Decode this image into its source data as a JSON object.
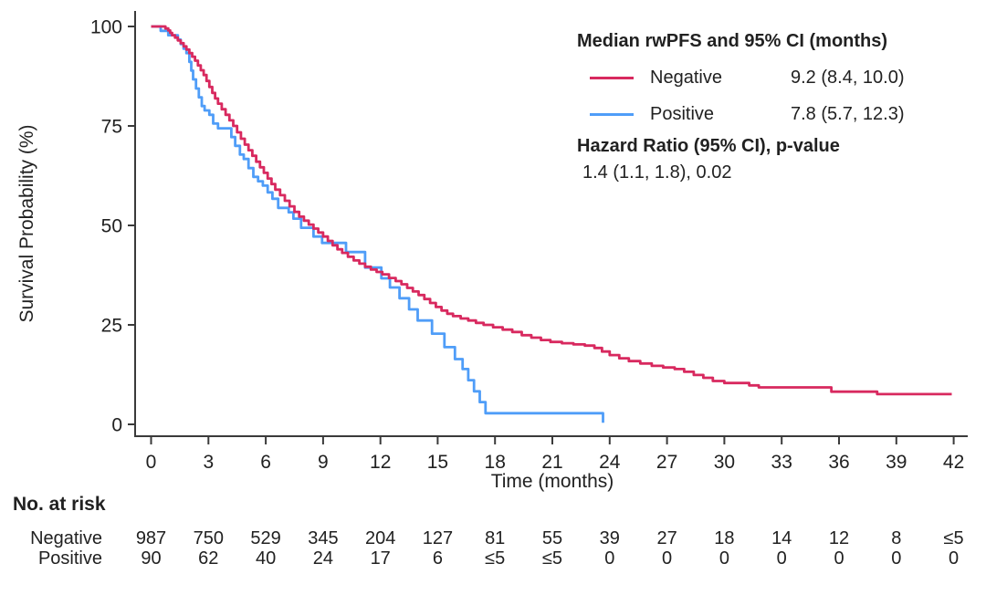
{
  "accent_colors": {
    "negative": "#d8295f",
    "positive": "#4f9df8",
    "axis": "#3a3a3a",
    "text": "#212121"
  },
  "legend": {
    "title": "Median rwPFS and 95% CI (months)",
    "rows": [
      {
        "label": "Negative",
        "value": "9.2 (8.4, 10.0)"
      },
      {
        "label": "Positive",
        "value": "7.8 (5.7, 12.3)"
      }
    ],
    "hazard_title": "Hazard Ratio (95% CI), p-value",
    "hazard_value": "1.4 (1.1, 1.8), 0.02"
  },
  "risk_table": {
    "header": "No. at risk",
    "time_points": [
      0,
      3,
      6,
      9,
      12,
      15,
      18,
      21,
      24,
      27,
      30,
      33,
      36,
      39,
      42
    ],
    "rows": [
      {
        "label": "Negative",
        "counts": [
          "987",
          "750",
          "529",
          "345",
          "204",
          "127",
          "81",
          "55",
          "39",
          "27",
          "18",
          "14",
          "12",
          "8",
          "≤5"
        ]
      },
      {
        "label": "Positive",
        "counts": [
          "90",
          "62",
          "40",
          "24",
          "17",
          "6",
          "≤5",
          "≤5",
          "0",
          "0",
          "0",
          "0",
          "0",
          "0",
          "0"
        ]
      }
    ]
  },
  "chart_data": {
    "type": "line",
    "subtype": "kaplan-meier-step",
    "title": "",
    "xlabel": "Time (months)",
    "ylabel": "Survival Probability (%)",
    "xlim": [
      0,
      42
    ],
    "ylim": [
      0,
      100
    ],
    "x_ticks": [
      0,
      3,
      6,
      9,
      12,
      15,
      18,
      21,
      24,
      27,
      30,
      33,
      36,
      39,
      42
    ],
    "y_ticks": [
      0,
      25,
      50,
      75,
      100
    ],
    "grid": false,
    "legend_position": "top-right",
    "series": [
      {
        "name": "Negative",
        "color": "#d8295f",
        "median_ci": "9.2 (8.4, 10.0)",
        "end_time": 41.9,
        "points": [
          [
            0,
            100
          ],
          [
            0.75,
            99.5
          ],
          [
            0.9,
            99
          ],
          [
            1.0,
            98.4
          ],
          [
            1.1,
            97.8
          ],
          [
            1.25,
            97.2
          ],
          [
            1.4,
            96.5
          ],
          [
            1.55,
            95.8
          ],
          [
            1.7,
            95.0
          ],
          [
            1.85,
            94.2
          ],
          [
            2.0,
            93.3
          ],
          [
            2.15,
            92.4
          ],
          [
            2.3,
            91.4
          ],
          [
            2.45,
            90.2
          ],
          [
            2.6,
            89.0
          ],
          [
            2.75,
            87.8
          ],
          [
            2.9,
            86.3
          ],
          [
            3.05,
            84.8
          ],
          [
            3.2,
            83.3
          ],
          [
            3.35,
            81.9
          ],
          [
            3.5,
            80.6
          ],
          [
            3.7,
            79.2
          ],
          [
            3.9,
            77.8
          ],
          [
            4.1,
            76.4
          ],
          [
            4.3,
            75.0
          ],
          [
            4.5,
            73.4
          ],
          [
            4.7,
            71.8
          ],
          [
            4.9,
            70.3
          ],
          [
            5.1,
            68.9
          ],
          [
            5.3,
            67.5
          ],
          [
            5.5,
            66.0
          ],
          [
            5.7,
            64.6
          ],
          [
            5.9,
            63.2
          ],
          [
            6.1,
            61.8
          ],
          [
            6.3,
            60.4
          ],
          [
            6.5,
            59.0
          ],
          [
            6.75,
            57.6
          ],
          [
            7.0,
            56.2
          ],
          [
            7.25,
            54.8
          ],
          [
            7.5,
            53.4
          ],
          [
            7.75,
            52.2
          ],
          [
            8.0,
            51.2
          ],
          [
            8.25,
            50.2
          ],
          [
            8.5,
            49.2
          ],
          [
            8.75,
            48.2
          ],
          [
            9.0,
            47.2
          ],
          [
            9.25,
            46.1
          ],
          [
            9.5,
            45.0
          ],
          [
            9.75,
            44.0
          ],
          [
            10.0,
            43.1
          ],
          [
            10.3,
            42.1
          ],
          [
            10.6,
            41.2
          ],
          [
            10.9,
            40.4
          ],
          [
            11.2,
            39.6
          ],
          [
            11.5,
            38.9
          ],
          [
            11.8,
            38.3
          ],
          [
            12.1,
            37.7
          ],
          [
            12.45,
            36.8
          ],
          [
            12.8,
            36.0
          ],
          [
            13.1,
            35.2
          ],
          [
            13.4,
            34.3
          ],
          [
            13.7,
            33.4
          ],
          [
            14.0,
            32.5
          ],
          [
            14.3,
            31.5
          ],
          [
            14.6,
            30.5
          ],
          [
            14.9,
            29.5
          ],
          [
            15.2,
            28.6
          ],
          [
            15.5,
            27.8
          ],
          [
            15.8,
            27.2
          ],
          [
            16.2,
            26.6
          ],
          [
            16.6,
            26.1
          ],
          [
            17.0,
            25.5
          ],
          [
            17.4,
            25.0
          ],
          [
            17.9,
            24.4
          ],
          [
            18.4,
            23.8
          ],
          [
            18.9,
            23.2
          ],
          [
            19.4,
            22.4
          ],
          [
            19.9,
            21.8
          ],
          [
            20.4,
            21.2
          ],
          [
            20.9,
            20.7
          ],
          [
            21.5,
            20.4
          ],
          [
            22.1,
            20.1
          ],
          [
            22.7,
            19.8
          ],
          [
            23.2,
            19.2
          ],
          [
            23.6,
            18.3
          ],
          [
            24.0,
            17.4
          ],
          [
            24.5,
            16.6
          ],
          [
            25.0,
            15.9
          ],
          [
            25.6,
            15.3
          ],
          [
            26.2,
            14.7
          ],
          [
            26.8,
            14.3
          ],
          [
            27.4,
            13.9
          ],
          [
            27.9,
            13.2
          ],
          [
            28.4,
            12.4
          ],
          [
            28.9,
            11.7
          ],
          [
            29.4,
            10.9
          ],
          [
            30.0,
            10.4
          ],
          [
            31.3,
            9.8
          ],
          [
            31.8,
            9.3
          ],
          [
            35.6,
            8.2
          ],
          [
            38.0,
            7.6
          ]
        ]
      },
      {
        "name": "Positive",
        "color": "#4f9df8",
        "median_ci": "7.8 (5.7, 12.3)",
        "end_time": null,
        "points": [
          [
            0,
            100
          ],
          [
            0.5,
            98.9
          ],
          [
            0.9,
            97.8
          ],
          [
            1.4,
            96.7
          ],
          [
            1.55,
            95.6
          ],
          [
            1.7,
            94.4
          ],
          [
            1.85,
            93.3
          ],
          [
            2.0,
            91.1
          ],
          [
            2.1,
            88.9
          ],
          [
            2.2,
            86.7
          ],
          [
            2.35,
            84.4
          ],
          [
            2.5,
            82.2
          ],
          [
            2.65,
            80.0
          ],
          [
            2.8,
            78.9
          ],
          [
            3.05,
            77.8
          ],
          [
            3.25,
            75.6
          ],
          [
            3.5,
            74.4
          ],
          [
            4.2,
            72.2
          ],
          [
            4.4,
            70.0
          ],
          [
            4.65,
            67.8
          ],
          [
            4.85,
            66.7
          ],
          [
            5.1,
            64.4
          ],
          [
            5.35,
            62.2
          ],
          [
            5.6,
            61.1
          ],
          [
            5.85,
            60.0
          ],
          [
            6.1,
            58.3
          ],
          [
            6.35,
            56.7
          ],
          [
            6.65,
            54.4
          ],
          [
            7.2,
            53.3
          ],
          [
            7.45,
            51.7
          ],
          [
            7.85,
            49.4
          ],
          [
            8.5,
            47.2
          ],
          [
            8.95,
            45.6
          ],
          [
            10.2,
            43.3
          ],
          [
            11.2,
            39.4
          ],
          [
            12.05,
            36.7
          ],
          [
            12.5,
            34.4
          ],
          [
            13.0,
            31.7
          ],
          [
            13.5,
            28.9
          ],
          [
            13.95,
            26.1
          ],
          [
            14.7,
            22.8
          ],
          [
            15.35,
            19.4
          ],
          [
            15.9,
            16.4
          ],
          [
            16.3,
            13.9
          ],
          [
            16.6,
            11.1
          ],
          [
            16.9,
            8.3
          ],
          [
            17.2,
            5.6
          ],
          [
            17.5,
            2.8
          ],
          [
            23.65,
            0.4
          ]
        ]
      }
    ]
  }
}
